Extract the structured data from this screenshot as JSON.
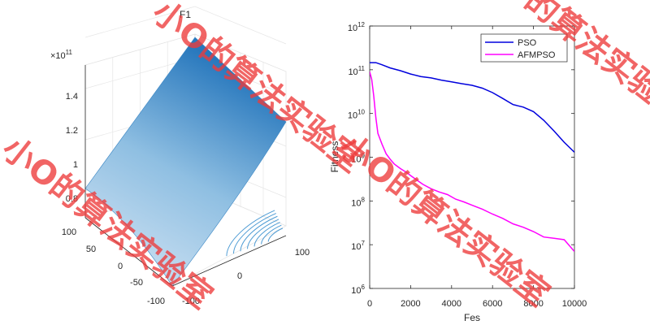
{
  "chart_data": [
    {
      "type": "surface",
      "title": "F1",
      "exponent_label": "×10",
      "exponent_value": "11",
      "z_ticks": [
        "0.8",
        "1",
        "1.2",
        "1.4"
      ],
      "x_ticks": [
        "-100",
        "0",
        "100"
      ],
      "y_ticks": [
        "100",
        "50",
        "0",
        "-50",
        "-100"
      ],
      "colormap": [
        "#dceaf6",
        "#2a7fc0"
      ]
    },
    {
      "type": "line",
      "xlabel": "Fes",
      "ylabel": "Fitness",
      "xlim": [
        0,
        10000
      ],
      "ylim": [
        1000000,
        1000000000000
      ],
      "yscale": "log",
      "x_ticks": [
        "0",
        "2000",
        "4000",
        "6000",
        "8000",
        "10000"
      ],
      "y_tick_base": "10",
      "y_tick_exponents": [
        "6",
        "7",
        "8",
        "9",
        "10",
        "11",
        "12"
      ],
      "legend_location": "top-right",
      "series": [
        {
          "name": "PSO",
          "color": "#0000dd",
          "x": [
            0,
            300,
            600,
            1000,
            1500,
            2000,
            2500,
            3000,
            3500,
            4000,
            4500,
            5000,
            5500,
            6000,
            6500,
            7000,
            7500,
            8000,
            8500,
            9000,
            9500,
            10000
          ],
          "y": [
            145000000000,
            145000000000,
            130000000000,
            110000000000,
            95000000000,
            80000000000,
            70000000000,
            65000000000,
            58000000000,
            53000000000,
            48000000000,
            44000000000,
            38000000000,
            30000000000,
            22000000000,
            16000000000,
            14000000000,
            11000000000,
            7000000000,
            4000000000,
            2200000000,
            1300000000
          ]
        },
        {
          "name": "AFMPSO",
          "color": "#ff00ff",
          "x": [
            0,
            100,
            200,
            300,
            400,
            600,
            800,
            1000,
            1200,
            1500,
            1800,
            2000,
            2300,
            2600,
            3000,
            3400,
            3800,
            4200,
            4600,
            5000,
            5500,
            6000,
            6500,
            7000,
            7500,
            8000,
            8500,
            9000,
            9500,
            10000
          ],
          "y": [
            90000000000,
            60000000000,
            25000000000,
            8000000000,
            3500000000,
            2000000000,
            1200000000,
            900000000,
            700000000,
            550000000,
            450000000,
            380000000,
            300000000,
            240000000,
            190000000,
            160000000,
            140000000,
            110000000,
            95000000,
            80000000,
            65000000,
            50000000,
            40000000,
            30000000,
            25000000,
            20000000,
            15000000,
            14000000,
            13000000,
            7000000
          ]
        }
      ]
    }
  ],
  "watermark": "小O的算法实验室"
}
